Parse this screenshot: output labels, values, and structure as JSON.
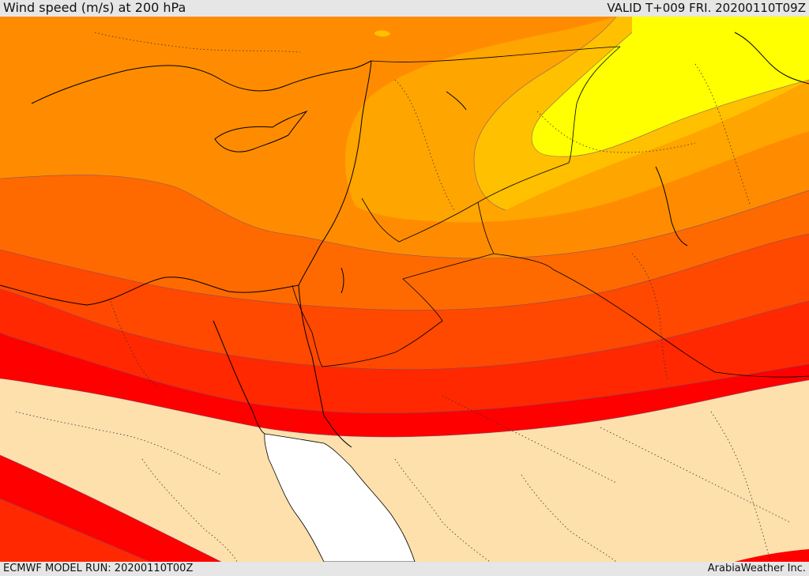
{
  "header": {
    "title": "Wind speed (m/s) at 200 hPa",
    "valid": "VALID T+009 FRI. 20200110T09Z"
  },
  "footer": {
    "model_run": "ECMWF MODEL RUN: 20200110T00Z",
    "credit": "ArabiaWeather Inc."
  },
  "map": {
    "field": "wind speed at 200 hPa",
    "colors": {
      "background_land": "#fde0ac",
      "sea_white": "#ffffff",
      "yellow": "#ffff00",
      "gold": "#ffc000",
      "light_orange": "#ffa500",
      "orange": "#ff8c00",
      "dark_orange": "#ff6a00",
      "red_orange": "#ff4800",
      "scarlet": "#ff2800",
      "red": "#ff0000"
    }
  }
}
